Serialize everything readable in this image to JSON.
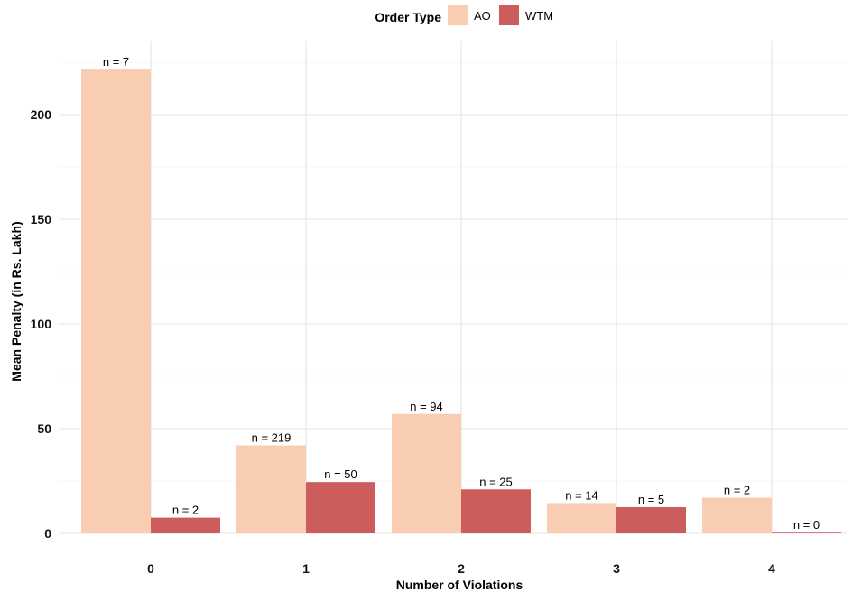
{
  "chart_data": {
    "type": "bar",
    "categories": [
      "0",
      "1",
      "2",
      "3",
      "4"
    ],
    "series": [
      {
        "name": "AO",
        "color": "#f9cdb1",
        "values": [
          221.5,
          42,
          57,
          14.5,
          17
        ],
        "labels": [
          "n = 7",
          "n = 219",
          "n = 94",
          "n = 14",
          "n = 2"
        ]
      },
      {
        "name": "WTM",
        "color": "#cd5c5c",
        "values": [
          7.5,
          24.5,
          21,
          12.5,
          0.3
        ],
        "labels": [
          "n = 2",
          "n = 50",
          "n = 25",
          "n = 5",
          "n = 0"
        ]
      }
    ],
    "xlabel": "Number of Violations",
    "ylabel": "Mean Penalty (in Rs. Lakh)",
    "ylim": [
      0,
      230
    ],
    "yticks": [
      0,
      50,
      100,
      150,
      200
    ],
    "legend": {
      "title": "Order Type",
      "position": "top"
    },
    "grid": true
  }
}
